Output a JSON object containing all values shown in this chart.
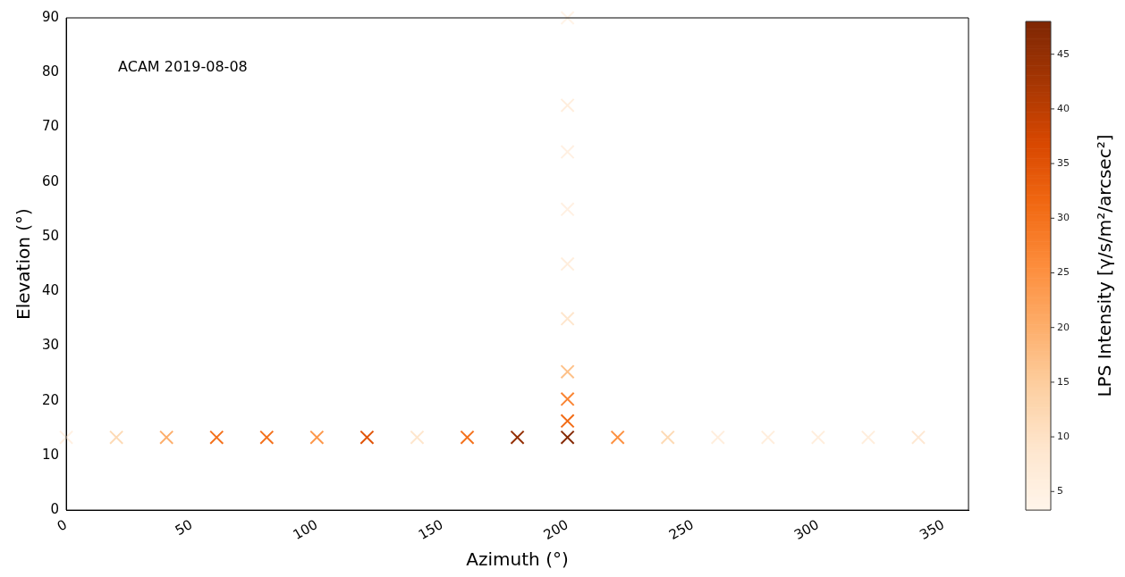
{
  "chart_data": {
    "type": "scatter",
    "xlabel": "Azimuth (°)",
    "ylabel": "Elevation (°)",
    "clabel": "LPS Intensity [γ/s/m²/arcsec²]",
    "annotations": [
      "ACAM 2019-08-08"
    ],
    "x": [
      0,
      20,
      40,
      60,
      80,
      100,
      120,
      140,
      160,
      180,
      200,
      220,
      240,
      260,
      280,
      300,
      320,
      340,
      200,
      200,
      200,
      200,
      200,
      200,
      200,
      200,
      200
    ],
    "values": [
      13.3,
      13.3,
      13.3,
      13.3,
      13.3,
      13.3,
      13.3,
      13.3,
      13.3,
      13.3,
      13.3,
      13.3,
      13.3,
      13.3,
      13.3,
      13.3,
      13.3,
      13.3,
      16.3,
      20.3,
      25.3,
      35,
      45,
      55,
      65.5,
      74,
      90
    ],
    "cvalues": [
      5,
      12,
      20,
      30,
      30,
      24,
      35,
      9,
      30,
      45,
      47,
      25,
      12,
      6,
      6,
      6,
      6,
      8,
      31,
      27,
      17,
      9,
      6,
      5,
      5,
      6,
      4
    ],
    "clim": [
      3.3,
      48
    ],
    "cticks": [
      5,
      10,
      15,
      20,
      25,
      30,
      35,
      40,
      45
    ],
    "xlim": [
      0,
      360
    ],
    "xticks": [
      0,
      50,
      100,
      150,
      200,
      250,
      300,
      350
    ],
    "ylim": [
      0,
      90
    ],
    "yticks": [
      0,
      10,
      20,
      30,
      40,
      50,
      60,
      70,
      80,
      90
    ],
    "marker": "cross",
    "grid": false,
    "legend": false
  }
}
